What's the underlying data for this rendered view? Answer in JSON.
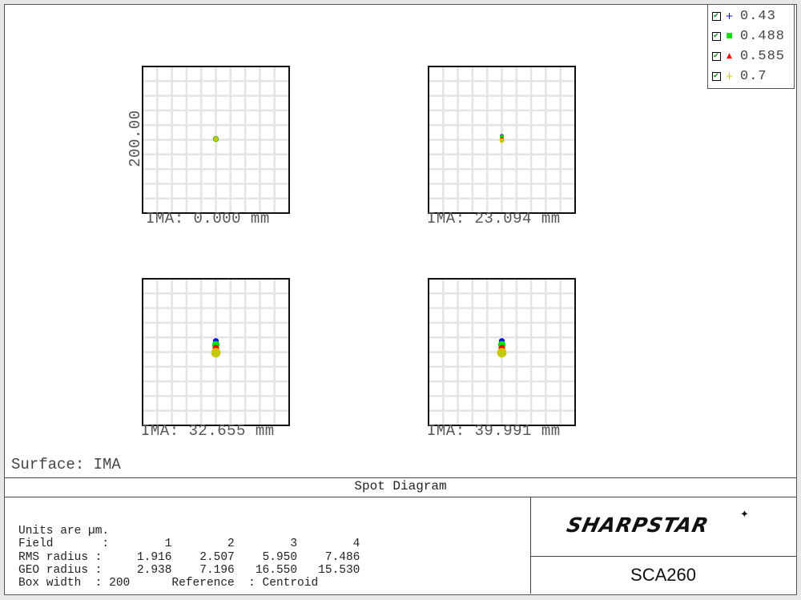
{
  "legend": [
    {
      "label": "0.43",
      "symbol": "+",
      "color": "#0000ff"
    },
    {
      "label": "0.488",
      "symbol": "■",
      "color": "#00e000"
    },
    {
      "label": "0.585",
      "symbol": "▲",
      "color": "#ff0000"
    },
    {
      "label": "0.7",
      "symbol": "+",
      "color": "#c8c800"
    }
  ],
  "checkmark": "✔",
  "surface_label": "Surface: IMA",
  "panel_title": "Spot Diagram",
  "stats": {
    "line1": "Units are µm.",
    "line2": "Field       :        1        2        3        4",
    "line3": "RMS radius :     1.916    2.507    5.950    7.486",
    "line4": "GEO radius :     2.938    7.196   16.550   15.530",
    "line5": "Box width  : 200      Reference  : Centroid"
  },
  "logo": "SHARPSTAR",
  "model": "SCA260",
  "chart_data": {
    "type": "scatter",
    "title": "Spot Diagram",
    "box_width_um": 200,
    "y_axis_label": "200.00",
    "grid": true,
    "grid_divisions": 10,
    "fields": [
      {
        "label": "IMA: 0.000 mm",
        "rms_radius": 1.916,
        "geo_radius": 2.938,
        "spots": [
          {
            "wl": "0.43",
            "dy": 0,
            "r": 3
          },
          {
            "wl": "0.488",
            "dy": 0,
            "r": 3
          },
          {
            "wl": "0.585",
            "dy": 0,
            "r": 2.5
          },
          {
            "wl": "0.7",
            "dy": 0,
            "r": 2.5
          }
        ]
      },
      {
        "label": "IMA: 23.094 mm",
        "rms_radius": 2.507,
        "geo_radius": 7.196,
        "spots": [
          {
            "wl": "0.43",
            "dy": -4,
            "r": 1.5
          },
          {
            "wl": "0.488",
            "dy": -3,
            "r": 2
          },
          {
            "wl": "0.585",
            "dy": 0,
            "r": 2
          },
          {
            "wl": "0.7",
            "dy": 2,
            "r": 2.5
          }
        ]
      },
      {
        "label": "IMA: 32.655 mm",
        "rms_radius": 5.95,
        "geo_radius": 16.55,
        "spots": [
          {
            "wl": "0.43",
            "dy": -14,
            "r": 3
          },
          {
            "wl": "0.488",
            "dy": -9,
            "r": 4
          },
          {
            "wl": "0.585",
            "dy": -4,
            "r": 3.5
          },
          {
            "wl": "0.7",
            "dy": 2,
            "r": 5
          }
        ]
      },
      {
        "label": "IMA: 39.991 mm",
        "rms_radius": 7.486,
        "geo_radius": 15.53,
        "spots": [
          {
            "wl": "0.43",
            "dy": -14,
            "r": 3
          },
          {
            "wl": "0.488",
            "dy": -9,
            "r": 4
          },
          {
            "wl": "0.585",
            "dy": -4,
            "r": 3.5
          },
          {
            "wl": "0.7",
            "dy": 2,
            "r": 5
          }
        ]
      }
    ]
  }
}
